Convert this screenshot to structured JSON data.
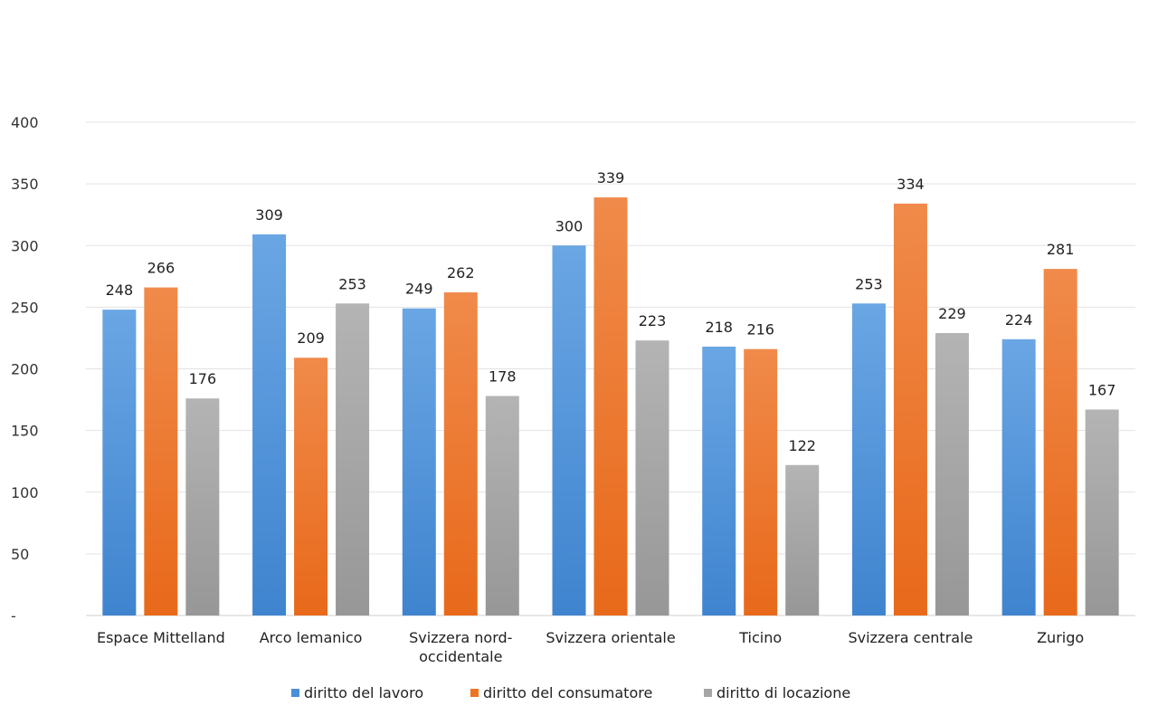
{
  "chart_data": {
    "type": "bar",
    "title": "",
    "xlabel": "",
    "ylabel": "",
    "ylim": [
      0,
      400
    ],
    "y_ticks": [
      0,
      50,
      100,
      150,
      200,
      250,
      300,
      350,
      400
    ],
    "y_tick_labels": [
      "-",
      "50",
      "100",
      "150",
      "200",
      "250",
      "300",
      "350",
      "400"
    ],
    "grid": true,
    "legend_position": "bottom",
    "categories": [
      [
        "Espace Mittelland"
      ],
      [
        "Arco lemanico"
      ],
      [
        "Svizzera nord-",
        "occidentale"
      ],
      [
        "Svizzera orientale"
      ],
      [
        "Ticino"
      ],
      [
        "Svizzera centrale"
      ],
      [
        "Zurigo"
      ]
    ],
    "series": [
      {
        "name": "diritto del lavoro",
        "color": "#4a8fd8",
        "values": [
          248,
          309,
          249,
          300,
          218,
          253,
          224
        ]
      },
      {
        "name": "diritto del consumatore",
        "color": "#ee7424",
        "values": [
          266,
          209,
          262,
          339,
          216,
          334,
          281
        ]
      },
      {
        "name": "diritto di locazione",
        "color": "#a5a5a5",
        "values": [
          176,
          253,
          178,
          223,
          122,
          229,
          167
        ]
      }
    ]
  }
}
